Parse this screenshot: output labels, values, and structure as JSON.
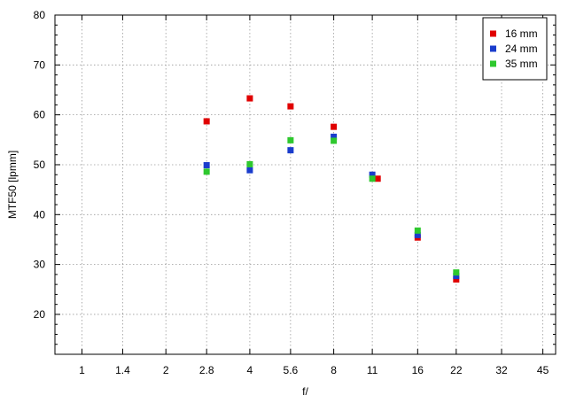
{
  "chart_data": {
    "type": "scatter",
    "title": "",
    "xlabel": "f/",
    "ylabel": "MTF50 [lpmm]",
    "x_scale": "log2",
    "x_ticks": [
      "1",
      "1.4",
      "2",
      "2.8",
      "4",
      "5.6",
      "8",
      "11",
      "16",
      "22",
      "32",
      "45"
    ],
    "x_tick_values": [
      1,
      1.4,
      2,
      2.8,
      4,
      5.6,
      8,
      11,
      16,
      22,
      32,
      45
    ],
    "xlim": [
      0.8,
      50
    ],
    "ylim": [
      12,
      80
    ],
    "y_ticks": [
      20,
      30,
      40,
      50,
      60,
      70,
      80
    ],
    "grid": true,
    "legend_position": "top-right",
    "series": [
      {
        "name": "16 mm",
        "color": "#e00000",
        "points": [
          [
            2.8,
            58.7
          ],
          [
            4,
            63.3
          ],
          [
            5.6,
            61.7
          ],
          [
            8,
            57.6
          ],
          [
            11.5,
            47.2
          ],
          [
            16,
            35.4
          ],
          [
            22,
            27.0
          ]
        ]
      },
      {
        "name": "24 mm",
        "color": "#1a3ccc",
        "points": [
          [
            2.8,
            49.9
          ],
          [
            4,
            48.9
          ],
          [
            5.6,
            52.9
          ],
          [
            8,
            55.6
          ],
          [
            11,
            48.0
          ],
          [
            16,
            35.9
          ],
          [
            22,
            27.7
          ]
        ]
      },
      {
        "name": "35 mm",
        "color": "#2ec82e",
        "points": [
          [
            2.8,
            48.6
          ],
          [
            4,
            50.1
          ],
          [
            5.6,
            54.9
          ],
          [
            8,
            54.8
          ],
          [
            11,
            47.2
          ],
          [
            16,
            36.8
          ],
          [
            22,
            28.4
          ]
        ]
      }
    ]
  }
}
